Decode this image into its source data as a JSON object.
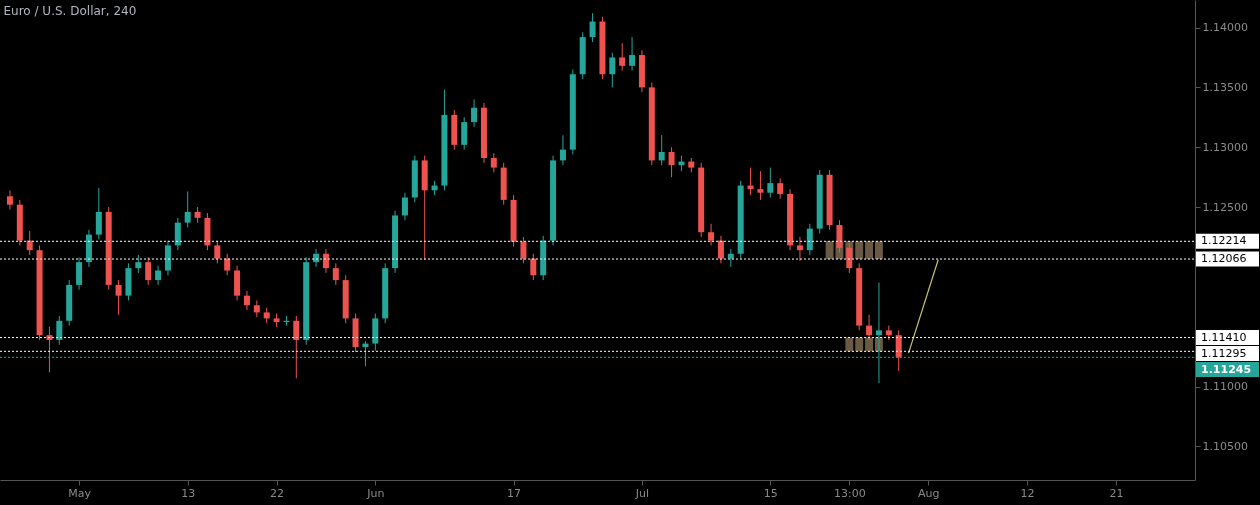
{
  "chart_data": {
    "type": "candlestick",
    "title": "Euro / U.S. Dollar, 240",
    "categories": [
      null,
      null,
      null,
      null,
      null,
      null,
      null,
      "May",
      null,
      null,
      null,
      null,
      null,
      null,
      null,
      null,
      null,
      null,
      "13",
      null,
      null,
      null,
      null,
      null,
      null,
      null,
      null,
      "22",
      null,
      null,
      null,
      null,
      null,
      null,
      null,
      null,
      null,
      "Jun",
      null,
      null,
      null,
      null,
      null,
      null,
      null,
      null,
      null,
      null,
      null,
      null,
      null,
      "17",
      null,
      null,
      null,
      null,
      null,
      null,
      null,
      null,
      null,
      null,
      null,
      null,
      "Jul",
      null,
      null,
      null,
      null,
      null,
      null,
      null,
      null,
      null,
      null,
      null,
      null,
      "15",
      null,
      null,
      null,
      null,
      null,
      null,
      null,
      "13:00",
      null,
      null,
      null,
      null,
      null,
      null,
      null,
      "Aug",
      null,
      null,
      null,
      null,
      null,
      null,
      null,
      null,
      null,
      "12",
      null,
      null,
      null,
      null,
      null,
      null,
      null,
      null,
      "21",
      null,
      null,
      null,
      null,
      null,
      null,
      null
    ],
    "ylim": [
      1.1022,
      1.1423
    ],
    "yticks": [
      {
        "value": 1.105,
        "label": "1.10500"
      },
      {
        "value": 1.11,
        "label": "1.11000"
      },
      {
        "value": 1.125,
        "label": "1.12500"
      },
      {
        "value": 1.13,
        "label": "1.13000"
      },
      {
        "value": 1.135,
        "label": "1.13500"
      },
      {
        "value": 1.14,
        "label": "1.14000"
      }
    ],
    "series": [
      {
        "type": "bar",
        "color": "#7d6a4f",
        "values": [
          null,
          null,
          null,
          null,
          null,
          null,
          null,
          null,
          null,
          null,
          null,
          null,
          null,
          null,
          null,
          null,
          null,
          null,
          null,
          null,
          null,
          null,
          null,
          null,
          null,
          null,
          null,
          null,
          null,
          null,
          null,
          null,
          null,
          null,
          null,
          null,
          null,
          null,
          null,
          null,
          null,
          null,
          null,
          null,
          null,
          null,
          null,
          null,
          null,
          null,
          null,
          null,
          null,
          null,
          null,
          null,
          null,
          null,
          null,
          null,
          null,
          null,
          null,
          null,
          null,
          null,
          null,
          null,
          null,
          null,
          null,
          null,
          null,
          null,
          null,
          null,
          null,
          null,
          null,
          null,
          null,
          null,
          null,
          0.00148,
          0.00148,
          0.00148,
          0.00148,
          0.00148,
          0.00148,
          null,
          null,
          null,
          null,
          null,
          null,
          null,
          null,
          null,
          null,
          null,
          null,
          null,
          null,
          null,
          null,
          null,
          null,
          null,
          null,
          null,
          null,
          null,
          null,
          null,
          null,
          null,
          null,
          null,
          null,
          null
        ],
        "base": [
          null,
          null,
          null,
          null,
          null,
          null,
          null,
          null,
          null,
          null,
          null,
          null,
          null,
          null,
          null,
          null,
          null,
          null,
          null,
          null,
          null,
          null,
          null,
          null,
          null,
          null,
          null,
          null,
          null,
          null,
          null,
          null,
          null,
          null,
          null,
          null,
          null,
          null,
          null,
          null,
          null,
          null,
          null,
          null,
          null,
          null,
          null,
          null,
          null,
          null,
          null,
          null,
          null,
          null,
          null,
          null,
          null,
          null,
          null,
          null,
          null,
          null,
          null,
          null,
          null,
          null,
          null,
          null,
          null,
          null,
          null,
          null,
          null,
          null,
          null,
          null,
          null,
          null,
          null,
          null,
          null,
          null,
          null,
          1.12066,
          1.12066,
          1.12066,
          1.12066,
          1.12066,
          1.12066,
          null,
          null,
          null,
          null,
          null,
          null,
          null,
          null,
          null,
          null,
          null,
          null,
          null,
          null,
          null,
          null,
          null,
          null,
          null,
          null,
          null,
          null,
          null,
          null,
          null,
          null,
          null,
          null,
          null,
          null,
          null
        ]
      },
      {
        "type": "bar",
        "color": "#7d6a4f",
        "values": [
          null,
          null,
          null,
          null,
          null,
          null,
          null,
          null,
          null,
          null,
          null,
          null,
          null,
          null,
          null,
          null,
          null,
          null,
          null,
          null,
          null,
          null,
          null,
          null,
          null,
          null,
          null,
          null,
          null,
          null,
          null,
          null,
          null,
          null,
          null,
          null,
          null,
          null,
          null,
          null,
          null,
          null,
          null,
          null,
          null,
          null,
          null,
          null,
          null,
          null,
          null,
          null,
          null,
          null,
          null,
          null,
          null,
          null,
          null,
          null,
          null,
          null,
          null,
          null,
          null,
          null,
          null,
          null,
          null,
          null,
          null,
          null,
          null,
          null,
          null,
          null,
          null,
          null,
          null,
          null,
          null,
          null,
          null,
          null,
          null,
          0.00115,
          0.00115,
          0.00115,
          0.00115,
          null,
          null,
          null,
          null,
          null,
          null,
          null,
          null,
          null,
          null,
          null,
          null,
          null,
          null,
          null,
          null,
          null,
          null,
          null,
          null,
          null,
          null,
          null,
          null,
          null,
          null,
          null,
          null,
          null,
          null,
          null
        ],
        "base": [
          null,
          null,
          null,
          null,
          null,
          null,
          null,
          null,
          null,
          null,
          null,
          null,
          null,
          null,
          null,
          null,
          null,
          null,
          null,
          null,
          null,
          null,
          null,
          null,
          null,
          null,
          null,
          null,
          null,
          null,
          null,
          null,
          null,
          null,
          null,
          null,
          null,
          null,
          null,
          null,
          null,
          null,
          null,
          null,
          null,
          null,
          null,
          null,
          null,
          null,
          null,
          null,
          null,
          null,
          null,
          null,
          null,
          null,
          null,
          null,
          null,
          null,
          null,
          null,
          null,
          null,
          null,
          null,
          null,
          null,
          null,
          null,
          null,
          null,
          null,
          null,
          null,
          null,
          null,
          null,
          null,
          null,
          null,
          null,
          null,
          1.11295,
          1.11295,
          1.11295,
          1.11295,
          null,
          null,
          null,
          null,
          null,
          null,
          null,
          null,
          null,
          null,
          null,
          null,
          null,
          null,
          null,
          null,
          null,
          null,
          null,
          null,
          null,
          null,
          null,
          null,
          null,
          null,
          null,
          null,
          null,
          null,
          null
        ]
      },
      {
        "type": "line",
        "color": "#c8c46e",
        "line_style": "solid",
        "values": [
          null,
          null,
          null,
          null,
          null,
          null,
          null,
          null,
          null,
          null,
          null,
          null,
          null,
          null,
          null,
          null,
          null,
          null,
          null,
          null,
          null,
          null,
          null,
          null,
          null,
          null,
          null,
          null,
          null,
          null,
          null,
          null,
          null,
          null,
          null,
          null,
          null,
          null,
          null,
          null,
          null,
          null,
          null,
          null,
          null,
          null,
          null,
          null,
          null,
          null,
          null,
          null,
          null,
          null,
          null,
          null,
          null,
          null,
          null,
          null,
          null,
          null,
          null,
          null,
          null,
          null,
          null,
          null,
          null,
          null,
          null,
          null,
          null,
          null,
          null,
          null,
          null,
          null,
          null,
          null,
          null,
          null,
          null,
          null,
          null,
          null,
          null,
          null,
          null,
          null,
          null,
          1.1128,
          null,
          null,
          1.1206,
          null,
          null,
          null,
          null,
          null,
          null,
          null,
          null,
          null,
          null,
          null,
          null,
          null,
          null,
          null,
          null,
          null,
          null,
          null,
          null,
          null,
          null,
          null,
          null,
          null
        ]
      },
      {
        "colors": [
          "#ef5350",
          "#ef5350",
          "#ef5350",
          "#ef5350",
          "#ef5350",
          "#26a69a",
          "#26a69a",
          "#26a69a",
          "#26a69a",
          "#26a69a",
          "#ef5350",
          "#ef5350",
          "#26a69a",
          "#26a69a",
          "#ef5350",
          "#26a69a",
          "#26a69a",
          "#26a69a",
          "#26a69a",
          "#ef5350",
          "#ef5350",
          "#ef5350",
          "#ef5350",
          "#ef5350",
          "#ef5350",
          "#ef5350",
          "#ef5350",
          "#ef5350",
          "#26a69a",
          "#ef5350",
          "#26a69a",
          "#26a69a",
          "#ef5350",
          "#ef5350",
          "#ef5350",
          "#ef5350",
          "#26a69a",
          "#26a69a",
          "#26a69a",
          "#26a69a",
          "#26a69a",
          "#26a69a",
          "#ef5350",
          "#26a69a",
          "#26a69a",
          "#ef5350",
          "#26a69a",
          "#26a69a",
          "#ef5350",
          "#ef5350",
          "#ef5350",
          "#ef5350",
          "#ef5350",
          "#ef5350",
          "#26a69a",
          "#26a69a",
          "#26a69a",
          "#26a69a",
          "#26a69a",
          "#26a69a",
          "#ef5350",
          "#26a69a",
          "#ef5350",
          "#26a69a",
          "#ef5350",
          "#ef5350",
          "#26a69a",
          "#ef5350",
          "#26a69a",
          "#ef5350",
          "#ef5350",
          "#ef5350",
          "#ef5350",
          "#26a69a",
          "#26a69a",
          "#ef5350",
          "#ef5350",
          "#26a69a",
          "#ef5350",
          "#ef5350",
          "#ef5350",
          "#26a69a",
          "#26a69a",
          "#ef5350",
          "#ef5350",
          "#ef5350",
          "#ef5350",
          "#ef5350",
          "#26a69a",
          "#ef5350",
          "#ef5350",
          null,
          null,
          null,
          null,
          null,
          null,
          null,
          null,
          null,
          null,
          null,
          null,
          null,
          null,
          null,
          null,
          null,
          null,
          null,
          null,
          null,
          null,
          null,
          null,
          null,
          null,
          null,
          null,
          null
        ],
        "ohlc": [
          [
            1.1259,
            1.1264,
            1.1248,
            1.1252
          ],
          [
            1.1252,
            1.1256,
            1.1218,
            1.1222
          ],
          [
            1.1222,
            1.123,
            1.121,
            1.1214
          ],
          [
            1.1214,
            1.1218,
            1.1139,
            1.1143
          ],
          [
            1.1143,
            1.115,
            1.1112,
            1.1139
          ],
          [
            1.1139,
            1.1159,
            1.1135,
            1.1155
          ],
          [
            1.1155,
            1.1189,
            1.1151,
            1.1185
          ],
          [
            1.1185,
            1.1208,
            1.1181,
            1.1204
          ],
          [
            1.1204,
            1.1231,
            1.12,
            1.1227
          ],
          [
            1.1227,
            1.1266,
            1.1223,
            1.1246
          ],
          [
            1.1246,
            1.125,
            1.1181,
            1.1185
          ],
          [
            1.1185,
            1.1189,
            1.116,
            1.1176
          ],
          [
            1.1176,
            1.1203,
            1.1172,
            1.1199
          ],
          [
            1.1199,
            1.121,
            1.1195,
            1.1204
          ],
          [
            1.1204,
            1.1208,
            1.1185,
            1.1189
          ],
          [
            1.1189,
            1.1201,
            1.1185,
            1.1197
          ],
          [
            1.1197,
            1.1222,
            1.1193,
            1.1218
          ],
          [
            1.1218,
            1.1241,
            1.1214,
            1.1237
          ],
          [
            1.1237,
            1.1263,
            1.1233,
            1.1246
          ],
          [
            1.1246,
            1.125,
            1.1237,
            1.1241
          ],
          [
            1.1241,
            1.1245,
            1.1214,
            1.1218
          ],
          [
            1.1218,
            1.1222,
            1.1203,
            1.1207
          ],
          [
            1.1207,
            1.1211,
            1.1193,
            1.1197
          ],
          [
            1.1197,
            1.1201,
            1.1172,
            1.1176
          ],
          [
            1.1176,
            1.118,
            1.1164,
            1.1168
          ],
          [
            1.1168,
            1.1172,
            1.1158,
            1.1162
          ],
          [
            1.1162,
            1.1166,
            1.1153,
            1.1157
          ],
          [
            1.1157,
            1.1161,
            1.115,
            1.1154
          ],
          [
            1.1154,
            1.1159,
            1.1151,
            1.1155
          ],
          [
            1.1155,
            1.1159,
            1.1107,
            1.1139
          ],
          [
            1.1139,
            1.1208,
            1.1135,
            1.1204
          ],
          [
            1.1204,
            1.1215,
            1.12,
            1.1211
          ],
          [
            1.1211,
            1.1215,
            1.1195,
            1.1199
          ],
          [
            1.1199,
            1.1203,
            1.1185,
            1.1189
          ],
          [
            1.1189,
            1.1193,
            1.1153,
            1.1157
          ],
          [
            1.1157,
            1.1161,
            1.1129,
            1.1133
          ],
          [
            1.1133,
            1.1138,
            1.1117,
            1.1136
          ],
          [
            1.1136,
            1.1161,
            1.113,
            1.1157
          ],
          [
            1.1157,
            1.1203,
            1.1153,
            1.1199
          ],
          [
            1.1199,
            1.1247,
            1.1195,
            1.1243
          ],
          [
            1.1243,
            1.1262,
            1.1239,
            1.1258
          ],
          [
            1.1258,
            1.1293,
            1.1254,
            1.1289
          ],
          [
            1.1289,
            1.1293,
            1.1206,
            1.1264
          ],
          [
            1.1264,
            1.1272,
            1.126,
            1.1268
          ],
          [
            1.1268,
            1.1348,
            1.1264,
            1.1327
          ],
          [
            1.1327,
            1.1331,
            1.1298,
            1.1302
          ],
          [
            1.1302,
            1.1325,
            1.1298,
            1.1321
          ],
          [
            1.1321,
            1.134,
            1.1317,
            1.1333
          ],
          [
            1.1333,
            1.1337,
            1.1287,
            1.1291
          ],
          [
            1.1291,
            1.1295,
            1.1279,
            1.1283
          ],
          [
            1.1283,
            1.1287,
            1.1252,
            1.1256
          ],
          [
            1.1256,
            1.126,
            1.1217,
            1.1221
          ],
          [
            1.1221,
            1.1225,
            1.1203,
            1.1207
          ],
          [
            1.1207,
            1.1211,
            1.1189,
            1.1193
          ],
          [
            1.1193,
            1.1226,
            1.1189,
            1.1222
          ],
          [
            1.1222,
            1.1293,
            1.1218,
            1.1289
          ],
          [
            1.1289,
            1.131,
            1.1285,
            1.1298
          ],
          [
            1.1298,
            1.1365,
            1.1294,
            1.1361
          ],
          [
            1.1361,
            1.1396,
            1.1357,
            1.1392
          ],
          [
            1.1392,
            1.1412,
            1.1388,
            1.1405
          ],
          [
            1.1405,
            1.1409,
            1.1357,
            1.1361
          ],
          [
            1.1361,
            1.1379,
            1.135,
            1.1375
          ],
          [
            1.1375,
            1.1387,
            1.1364,
            1.1368
          ],
          [
            1.1368,
            1.1392,
            1.1364,
            1.1377
          ],
          [
            1.1377,
            1.1381,
            1.1346,
            1.135
          ],
          [
            1.135,
            1.1354,
            1.1285,
            1.1289
          ],
          [
            1.1289,
            1.131,
            1.1285,
            1.1296
          ],
          [
            1.1296,
            1.13,
            1.1275,
            1.1285
          ],
          [
            1.1285,
            1.1293,
            1.128,
            1.1288
          ],
          [
            1.1288,
            1.1291,
            1.1279,
            1.1283
          ],
          [
            1.1283,
            1.1287,
            1.1225,
            1.1229
          ],
          [
            1.1229,
            1.1236,
            1.1218,
            1.1222
          ],
          [
            1.1222,
            1.1226,
            1.1203,
            1.1207
          ],
          [
            1.1207,
            1.1215,
            1.12,
            1.1211
          ],
          [
            1.1211,
            1.1272,
            1.1207,
            1.1268
          ],
          [
            1.1268,
            1.1283,
            1.126,
            1.1265
          ],
          [
            1.1265,
            1.128,
            1.1256,
            1.1262
          ],
          [
            1.1262,
            1.1283,
            1.1258,
            1.127
          ],
          [
            1.127,
            1.1274,
            1.1257,
            1.1261
          ],
          [
            1.1261,
            1.1265,
            1.1214,
            1.1218
          ],
          [
            1.1218,
            1.1225,
            1.1205,
            1.1214
          ],
          [
            1.1214,
            1.1236,
            1.121,
            1.1232
          ],
          [
            1.1232,
            1.1281,
            1.1228,
            1.1277
          ],
          [
            1.1277,
            1.1281,
            1.1231,
            1.1235
          ],
          [
            1.1235,
            1.1239,
            1.1212,
            1.1216
          ],
          [
            1.1216,
            1.122,
            1.1195,
            1.1199
          ],
          [
            1.1199,
            1.1203,
            1.1147,
            1.1151
          ],
          [
            1.1151,
            1.116,
            1.1139,
            1.1143
          ],
          [
            1.1143,
            1.1187,
            1.1103,
            1.1147
          ],
          [
            1.1147,
            1.1151,
            1.1139,
            1.1143
          ],
          [
            1.1143,
            1.1147,
            1.1113,
            1.11245
          ],
          null,
          null,
          null,
          null,
          null,
          null,
          null,
          null,
          null,
          null,
          null,
          null,
          null,
          null,
          null,
          null,
          null,
          null,
          null,
          null,
          null,
          null,
          null,
          null,
          null,
          null,
          null,
          null,
          null
        ]
      }
    ],
    "ref_lines": [
      {
        "axis": "y",
        "value": 1.12214,
        "label": "1.12214",
        "color": "#ffffff",
        "line_style": "dotted"
      },
      {
        "axis": "y",
        "value": 1.12066,
        "label": "1.12066",
        "color": "#ffffff",
        "line_style": "dotted"
      },
      {
        "axis": "y",
        "value": 1.1141,
        "label": "1.11410",
        "color": "#ffffff",
        "line_style": "dotted"
      },
      {
        "axis": "y",
        "value": 1.11295,
        "label": "1.11295",
        "color": "#ffffff",
        "line_style": "dotted"
      },
      {
        "axis": "y",
        "value": 1.11245,
        "label": "1.11245",
        "color": "#26a69a",
        "line_style": "dotted"
      }
    ]
  }
}
